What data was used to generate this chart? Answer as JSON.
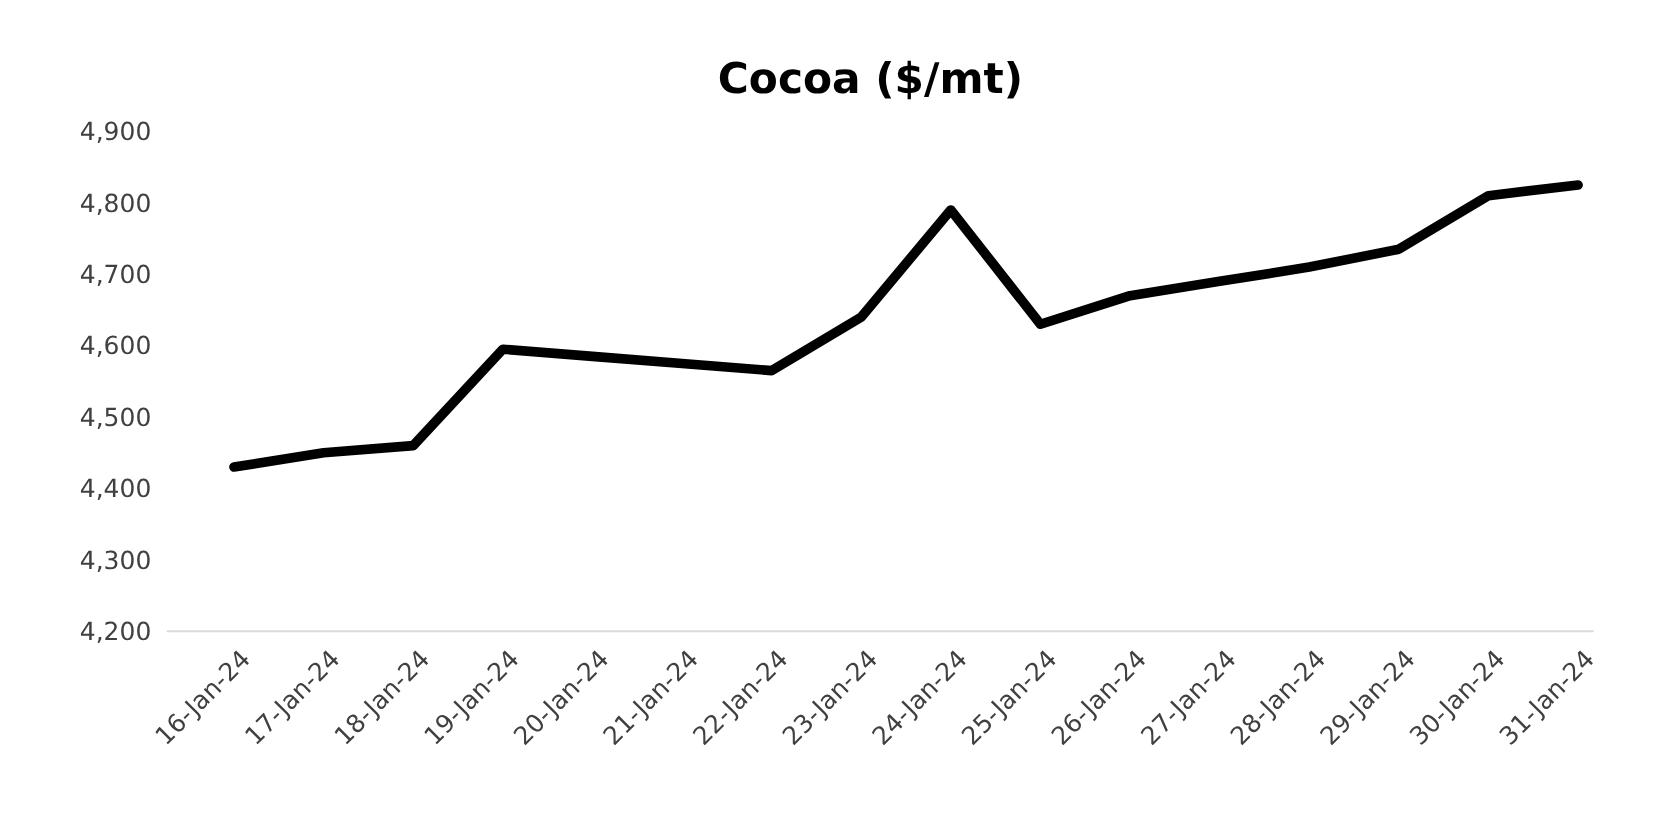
{
  "chart_data": {
    "type": "line",
    "title": "Cocoa ($/mt)",
    "categories": [
      "16-Jan-24",
      "17-Jan-24",
      "18-Jan-24",
      "19-Jan-24",
      "20-Jan-24",
      "21-Jan-24",
      "22-Jan-24",
      "23-Jan-24",
      "24-Jan-24",
      "25-Jan-24",
      "26-Jan-24",
      "27-Jan-24",
      "28-Jan-24",
      "29-Jan-24",
      "30-Jan-24",
      "31-Jan-24"
    ],
    "series": [
      {
        "color": "#000000",
        "values": [
          4430,
          4450,
          4460,
          4595,
          4585,
          4575,
          4565,
          4640,
          4790,
          4630,
          4670,
          4690,
          4710,
          4735,
          4810,
          4825
        ]
      }
    ],
    "ylim": [
      4200,
      4900
    ],
    "yticks": [
      {
        "value": 4200,
        "label": "4,200"
      },
      {
        "value": 4300,
        "label": "4,300"
      },
      {
        "value": 4400,
        "label": "4,400"
      },
      {
        "value": 4500,
        "label": "4,500"
      },
      {
        "value": 4600,
        "label": "4,600"
      },
      {
        "value": 4700,
        "label": "4,700"
      },
      {
        "value": 4800,
        "label": "4,800"
      },
      {
        "value": 4900,
        "label": "4,900"
      }
    ],
    "grid": false,
    "line_style": "solid"
  }
}
